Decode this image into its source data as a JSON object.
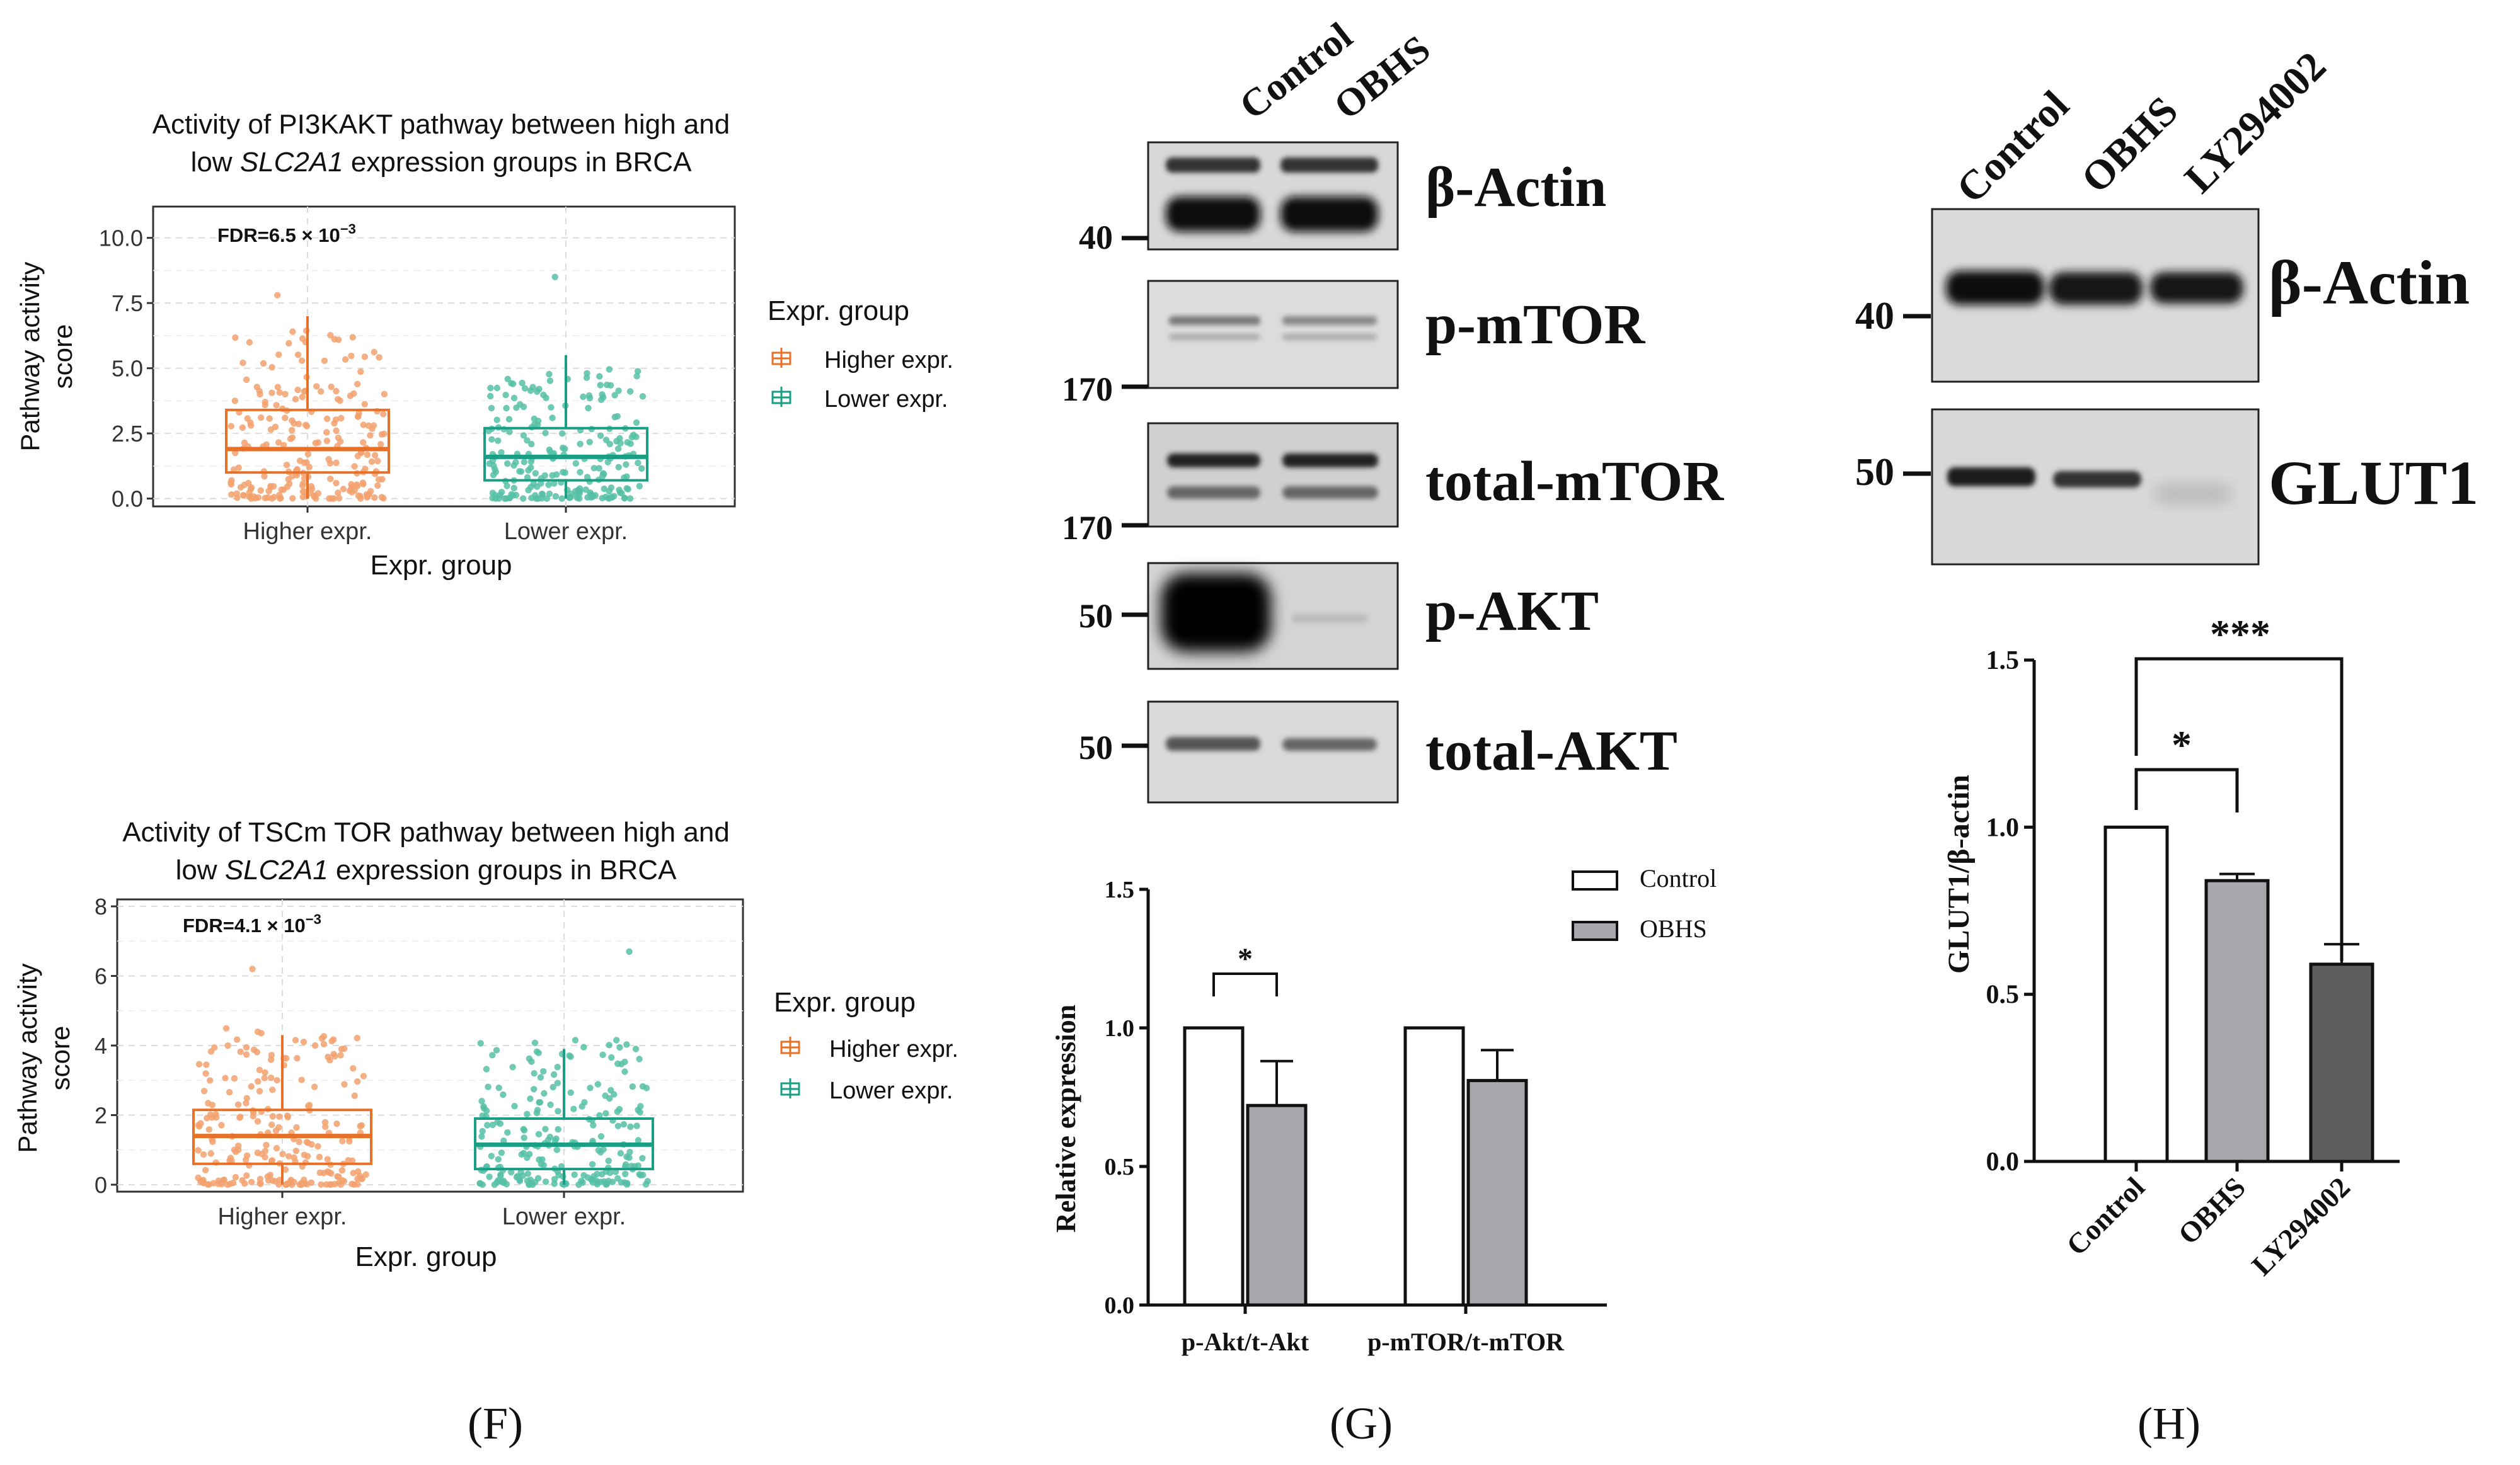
{
  "colors": {
    "higher": "#e8712a",
    "higher_light": "#f2a26e",
    "lower": "#1a9e84",
    "lower_light": "#56c0a6",
    "bar_gray": "#a7a8ab",
    "bar_dark": "#5d5e60",
    "panel_bg": "#ffffff",
    "grid": "#dcdcdc"
  },
  "panel_labels": [
    "(F)",
    "(G)",
    "(H)"
  ],
  "chart_data": [
    {
      "id": "F1",
      "type": "box",
      "title_prefix": "Activity of PI3KAKT pathway between high and",
      "title_line2_prefix": "low ",
      "title_gene": "SLC2A1",
      "title_line2_suffix": " expression groups in BRCA",
      "annotation_main": "FDR=6.5 × 10",
      "annotation_exp": "−3",
      "xlabel": "Expr. group",
      "ylabel_line1": "Pathway activity",
      "ylabel_line2": "score",
      "ylim": [
        -0.3,
        11.2
      ],
      "yticks": [
        0.0,
        2.5,
        5.0,
        7.5,
        10.0
      ],
      "ytick_labels": [
        "0.0",
        "2.5",
        "5.0",
        "7.5",
        "10.0"
      ],
      "categories": [
        "Higher expr.",
        "Lower expr."
      ],
      "legend_title": "Expr. group",
      "legend_items": [
        "Higher expr.",
        "Lower expr."
      ],
      "boxes": [
        {
          "name": "Higher expr.",
          "q1": 1.0,
          "median": 1.9,
          "q3": 3.4,
          "whisker_low": 0.0,
          "whisker_high": 7.0,
          "max_point": 7.8,
          "spread_hint": 6.5
        },
        {
          "name": "Lower expr.",
          "q1": 0.7,
          "median": 1.6,
          "q3": 2.7,
          "whisker_low": 0.0,
          "whisker_high": 5.5,
          "max_point": 8.5,
          "spread_hint": 5.0
        }
      ]
    },
    {
      "id": "F2",
      "type": "box",
      "title_prefix": "Activity of TSCm TOR pathway between high and",
      "title_line2_prefix": "low ",
      "title_gene": "SLC2A1",
      "title_line2_suffix": " expression groups in BRCA",
      "annotation_main": "FDR=4.1 × 10",
      "annotation_exp": "−3",
      "xlabel": "Expr. group",
      "ylabel_line1": "Pathway activity",
      "ylabel_line2": "score",
      "ylim": [
        -0.2,
        8.2
      ],
      "yticks": [
        0,
        2,
        4,
        6,
        8
      ],
      "ytick_labels": [
        "0",
        "2",
        "4",
        "6",
        "8"
      ],
      "categories": [
        "Higher expr.",
        "Lower expr."
      ],
      "legend_title": "Expr. group",
      "legend_items": [
        "Higher expr.",
        "Lower expr."
      ],
      "boxes": [
        {
          "name": "Higher expr.",
          "q1": 0.6,
          "median": 1.4,
          "q3": 2.15,
          "whisker_low": 0.0,
          "whisker_high": 4.3,
          "max_point": 6.2,
          "spread_hint": 4.5
        },
        {
          "name": "Lower expr.",
          "q1": 0.45,
          "median": 1.15,
          "q3": 1.9,
          "whisker_low": 0.0,
          "whisker_high": 3.9,
          "max_point": 6.7,
          "spread_hint": 4.2
        }
      ]
    },
    {
      "id": "G",
      "type": "bar",
      "ylabel": "Relative expression",
      "ylim": [
        0.0,
        1.5
      ],
      "yticks": [
        0.0,
        0.5,
        1.0,
        1.5
      ],
      "ytick_labels": [
        "0.0",
        "0.5",
        "1.0",
        "1.5"
      ],
      "categories": [
        "p-Akt/t-Akt",
        "p-mTOR/t-mTOR"
      ],
      "series": [
        {
          "name": "Control",
          "values": [
            1.0,
            1.0
          ],
          "errors": [
            0,
            0
          ],
          "fill": "white"
        },
        {
          "name": "OBHS",
          "values": [
            0.72,
            0.81
          ],
          "errors": [
            0.16,
            0.11
          ],
          "fill": "gray"
        }
      ],
      "significance": [
        {
          "category": "p-Akt/t-Akt",
          "label": "*"
        }
      ],
      "legend_items": [
        "Control",
        "OBHS"
      ]
    },
    {
      "id": "H",
      "type": "bar",
      "ylabel": "GLUT1/β-actin",
      "ylim": [
        0.0,
        1.5
      ],
      "yticks": [
        0.0,
        0.5,
        1.0,
        1.5
      ],
      "ytick_labels": [
        "0.0",
        "0.5",
        "1.0",
        "1.5"
      ],
      "categories": [
        "Control",
        "OBHS",
        "LY294002"
      ],
      "values": [
        1.0,
        0.84,
        0.59
      ],
      "errors": [
        0.0,
        0.02,
        0.06
      ],
      "significance": [
        {
          "from": "Control",
          "to": "OBHS",
          "label": "*"
        },
        {
          "from": "Control",
          "to": "LY294002",
          "label": "***"
        }
      ]
    }
  ],
  "blot_G": {
    "lanes": [
      "Control",
      "OBHS"
    ],
    "rows": [
      {
        "protein": "β-Actin",
        "marker": "40"
      },
      {
        "protein": "p-mTOR",
        "marker": "170"
      },
      {
        "protein": "total-mTOR",
        "marker": "170"
      },
      {
        "protein": "p-AKT",
        "marker": "50"
      },
      {
        "protein": "total-AKT",
        "marker": "50"
      }
    ]
  },
  "blot_H": {
    "lanes": [
      "Control",
      "OBHS",
      "LY294002"
    ],
    "rows": [
      {
        "protein": "β-Actin",
        "marker": "40"
      },
      {
        "protein": "GLUT1",
        "marker": "50"
      }
    ]
  }
}
